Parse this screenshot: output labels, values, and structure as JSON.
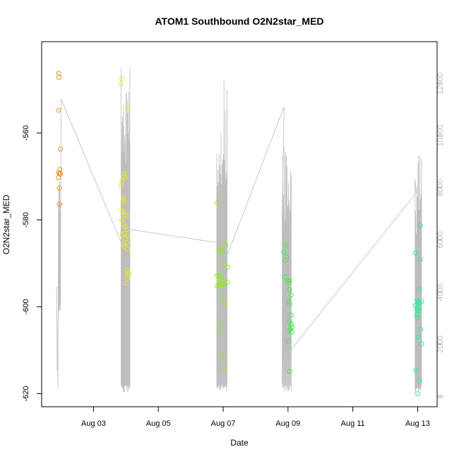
{
  "chart_data": {
    "type": "scatter",
    "title": "ATOM1 Southbound O2N2star_MED",
    "xlabel": "Date",
    "ylabel": "O2N2star_MED",
    "x_ticks": [
      "Aug 03",
      "Aug 05",
      "Aug 07",
      "Aug 09",
      "Aug 11",
      "Aug 13"
    ],
    "x_tick_days": [
      3,
      5,
      7,
      9,
      11,
      13
    ],
    "x_range_days": [
      1.4,
      13.6
    ],
    "y_ticks": [
      "-620",
      "-600",
      "-580",
      "-560"
    ],
    "y_tick_values": [
      -620,
      -600,
      -580,
      -560
    ],
    "ylim": [
      -623.0,
      -539.0
    ],
    "y2_ticks": [
      "0",
      "2000",
      "4000",
      "6000",
      "8000",
      "10000",
      "12000"
    ],
    "y2_tick_values": [
      0,
      2000,
      4000,
      6000,
      8000,
      10000,
      12000
    ],
    "y2lim": [
      -400,
      13600
    ],
    "grid": false,
    "series": [
      {
        "color": "#F08E1E",
        "points": [
          [
            1.93,
            -546.3
          ],
          [
            1.93,
            -547.2
          ],
          [
            1.92,
            -554.8
          ],
          [
            1.98,
            -563.7
          ],
          [
            1.96,
            -568.4
          ],
          [
            1.92,
            -569.1
          ],
          [
            1.95,
            -569.4
          ],
          [
            1.98,
            -569.4
          ],
          [
            1.92,
            -570.3
          ],
          [
            1.95,
            -572.7
          ],
          [
            1.95,
            -576.4
          ]
        ]
      },
      {
        "color": "#E6E62E",
        "points": [
          [
            3.87,
            -547.6
          ],
          [
            3.83,
            -548.8
          ],
          [
            4.05,
            -554.3
          ],
          [
            3.95,
            -569.4
          ],
          [
            3.92,
            -570.0
          ],
          [
            3.98,
            -570.3
          ],
          [
            3.87,
            -571.2
          ],
          [
            3.85,
            -572.2
          ],
          [
            3.92,
            -574.9
          ],
          [
            3.92,
            -575.5
          ],
          [
            3.95,
            -576.1
          ],
          [
            3.87,
            -577.9
          ],
          [
            3.92,
            -578.2
          ],
          [
            3.97,
            -578.8
          ],
          [
            4.02,
            -579.1
          ],
          [
            3.87,
            -580.1
          ],
          [
            3.92,
            -581.0
          ],
          [
            3.98,
            -581.6
          ],
          [
            4.02,
            -582.2
          ],
          [
            3.95,
            -583.1
          ],
          [
            3.88,
            -583.4
          ],
          [
            4.05,
            -583.7
          ],
          [
            3.98,
            -584.3
          ],
          [
            4.02,
            -585.2
          ],
          [
            3.92,
            -585.5
          ],
          [
            3.95,
            -586.1
          ],
          [
            4.05,
            -586.7
          ],
          [
            4.02,
            -591.6
          ],
          [
            4.05,
            -592.2
          ],
          [
            4.1,
            -592.5
          ],
          [
            4.05,
            -593.4
          ],
          [
            4.0,
            -594.6
          ]
        ]
      },
      {
        "color": "#8FEC1E",
        "points": [
          [
            6.82,
            -576.1
          ],
          [
            7.08,
            -585.8
          ],
          [
            6.92,
            -586.7
          ],
          [
            6.87,
            -587.0
          ],
          [
            6.97,
            -587.6
          ],
          [
            7.02,
            -590.3
          ],
          [
            7.13,
            -590.9
          ],
          [
            6.82,
            -592.8
          ],
          [
            6.87,
            -592.8
          ],
          [
            6.92,
            -593.1
          ],
          [
            6.9,
            -593.4
          ],
          [
            6.97,
            -594.0
          ],
          [
            7.13,
            -594.3
          ],
          [
            6.97,
            -594.6
          ],
          [
            6.82,
            -595.2
          ],
          [
            6.87,
            -594.9
          ],
          [
            6.92,
            -594.9
          ],
          [
            7.02,
            -594.9
          ],
          [
            6.95,
            -597.6
          ],
          [
            7.05,
            -599.1
          ],
          [
            6.92,
            -604.3
          ],
          [
            6.87,
            -605.8
          ],
          [
            6.97,
            -611.3
          ],
          [
            7.02,
            -614.3
          ]
        ]
      },
      {
        "color": "#40EC48",
        "points": [
          [
            8.92,
            -585.8
          ],
          [
            8.87,
            -587.3
          ],
          [
            8.95,
            -588.5
          ],
          [
            8.92,
            -589.4
          ],
          [
            8.9,
            -593.1
          ],
          [
            9.0,
            -594.0
          ],
          [
            9.05,
            -594.0
          ],
          [
            9.02,
            -594.6
          ],
          [
            9.05,
            -596.1
          ],
          [
            9.1,
            -597.3
          ],
          [
            9.02,
            -598.8
          ],
          [
            9.05,
            -599.4
          ],
          [
            9.1,
            -601.9
          ],
          [
            9.05,
            -603.4
          ],
          [
            9.1,
            -604.0
          ],
          [
            9.12,
            -604.6
          ],
          [
            9.08,
            -605.2
          ],
          [
            9.12,
            -605.8
          ],
          [
            9.05,
            -605.5
          ],
          [
            9.02,
            -607.9
          ],
          [
            9.05,
            -614.9
          ]
        ]
      },
      {
        "color": "#2EEB9A",
        "points": [
          [
            13.08,
            -581.3
          ],
          [
            12.93,
            -587.6
          ],
          [
            13.08,
            -589.1
          ],
          [
            13.05,
            -596.1
          ],
          [
            12.98,
            -598.5
          ],
          [
            13.02,
            -598.8
          ],
          [
            13.12,
            -598.8
          ],
          [
            13.05,
            -599.1
          ],
          [
            12.93,
            -599.7
          ],
          [
            13.0,
            -600.3
          ],
          [
            13.05,
            -600.3
          ],
          [
            12.98,
            -600.6
          ],
          [
            13.02,
            -600.9
          ],
          [
            12.97,
            -601.9
          ],
          [
            13.0,
            -602.5
          ],
          [
            13.1,
            -605.2
          ],
          [
            13.02,
            -607.0
          ],
          [
            13.12,
            -608.5
          ],
          [
            12.95,
            -614.6
          ],
          [
            13.05,
            -617.0
          ],
          [
            13.0,
            -620.0
          ]
        ]
      }
    ]
  }
}
